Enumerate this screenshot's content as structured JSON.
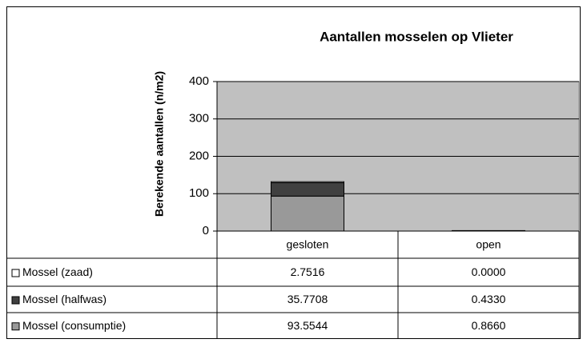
{
  "chart_data": {
    "type": "bar",
    "stacked": true,
    "title": "Aantallen mosselen op Vlieter",
    "y_label": "Berekende aantallen (n/m2)",
    "categories": [
      "gesloten",
      "open"
    ],
    "series": [
      {
        "name": "Mossel (zaad)",
        "color": "#ffffff",
        "values": [
          2.7516,
          0
        ],
        "value_labels": [
          "2.7516",
          "0.0000"
        ]
      },
      {
        "name": "Mossel (halfwas)",
        "color": "#404040",
        "values": [
          35.7708,
          0.433
        ],
        "value_labels": [
          "35.7708",
          "0.4330"
        ]
      },
      {
        "name": "Mossel (consumptie)",
        "color": "#999999",
        "values": [
          93.5544,
          0.866
        ],
        "value_labels": [
          "93.5544",
          "0.8660"
        ]
      }
    ],
    "ylim": [
      0,
      400
    ],
    "yticks": [
      0,
      100,
      200,
      300,
      400
    ],
    "grid": true,
    "plot_background": "#c0c0c0"
  }
}
